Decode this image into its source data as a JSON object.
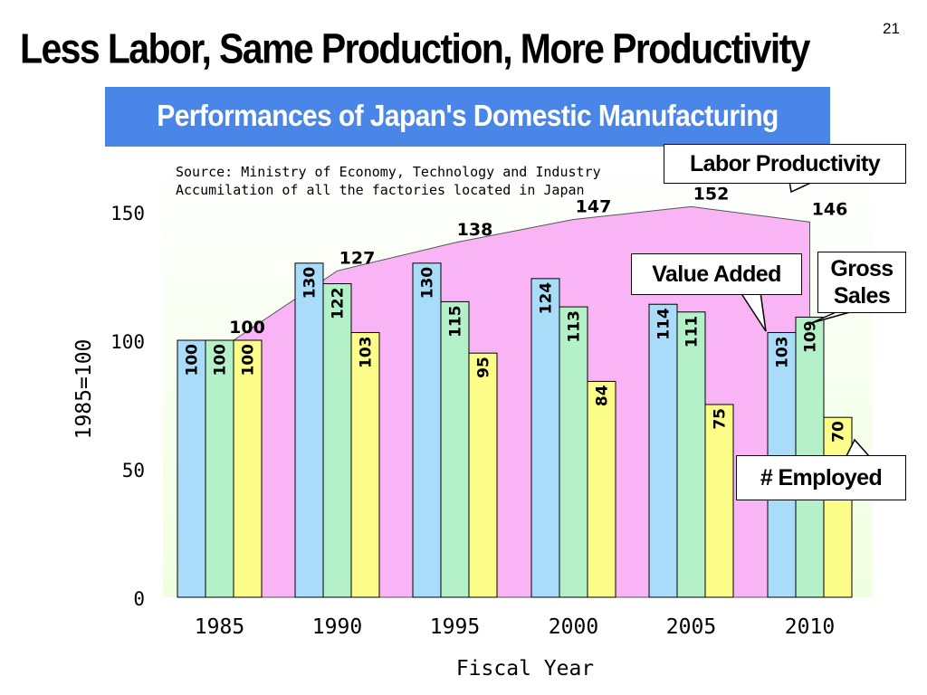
{
  "slide": {
    "title": "Less Labor, Same Production, More Productivity",
    "page_number": "21",
    "subtitle": "Performances of Japan's Domestic Manufacturing"
  },
  "callouts": {
    "labor_productivity": "Labor Productivity",
    "value_added": "Value Added",
    "gross_sales_line1": "Gross",
    "gross_sales_line2": "Sales",
    "employed": "# Employed"
  },
  "chart_data": {
    "type": "bar",
    "source_note": [
      "Source: Ministry of Economy, Technology and Industry",
      "Accumilation of all the factories located in Japan"
    ],
    "xlabel": "Fiscal Year",
    "ylabel": "1985=100",
    "ylim": [
      0,
      160
    ],
    "yticks": [
      0,
      50,
      100,
      150
    ],
    "categories": [
      "1985",
      "1990",
      "1995",
      "2000",
      "2005",
      "2010"
    ],
    "series": [
      {
        "name": "Value Added",
        "color": "#a8dcf8",
        "values": [
          100,
          130,
          130,
          124,
          114,
          103
        ]
      },
      {
        "name": "Gross Sales",
        "color": "#b4f0c8",
        "values": [
          100,
          122,
          115,
          113,
          111,
          109
        ]
      },
      {
        "name": "# Employed",
        "color": "#fcfc88",
        "values": [
          100,
          103,
          95,
          84,
          75,
          70
        ]
      }
    ],
    "area_series": {
      "name": "Labor Productivity",
      "color": "#f8b4f4",
      "values": [
        100,
        127,
        138,
        147,
        152,
        146
      ]
    },
    "colors": {
      "plot_bg_top": "#ffffff",
      "plot_bg_bottom": "#f0ffe0",
      "banner": "#4a86e8"
    },
    "grid": false
  }
}
